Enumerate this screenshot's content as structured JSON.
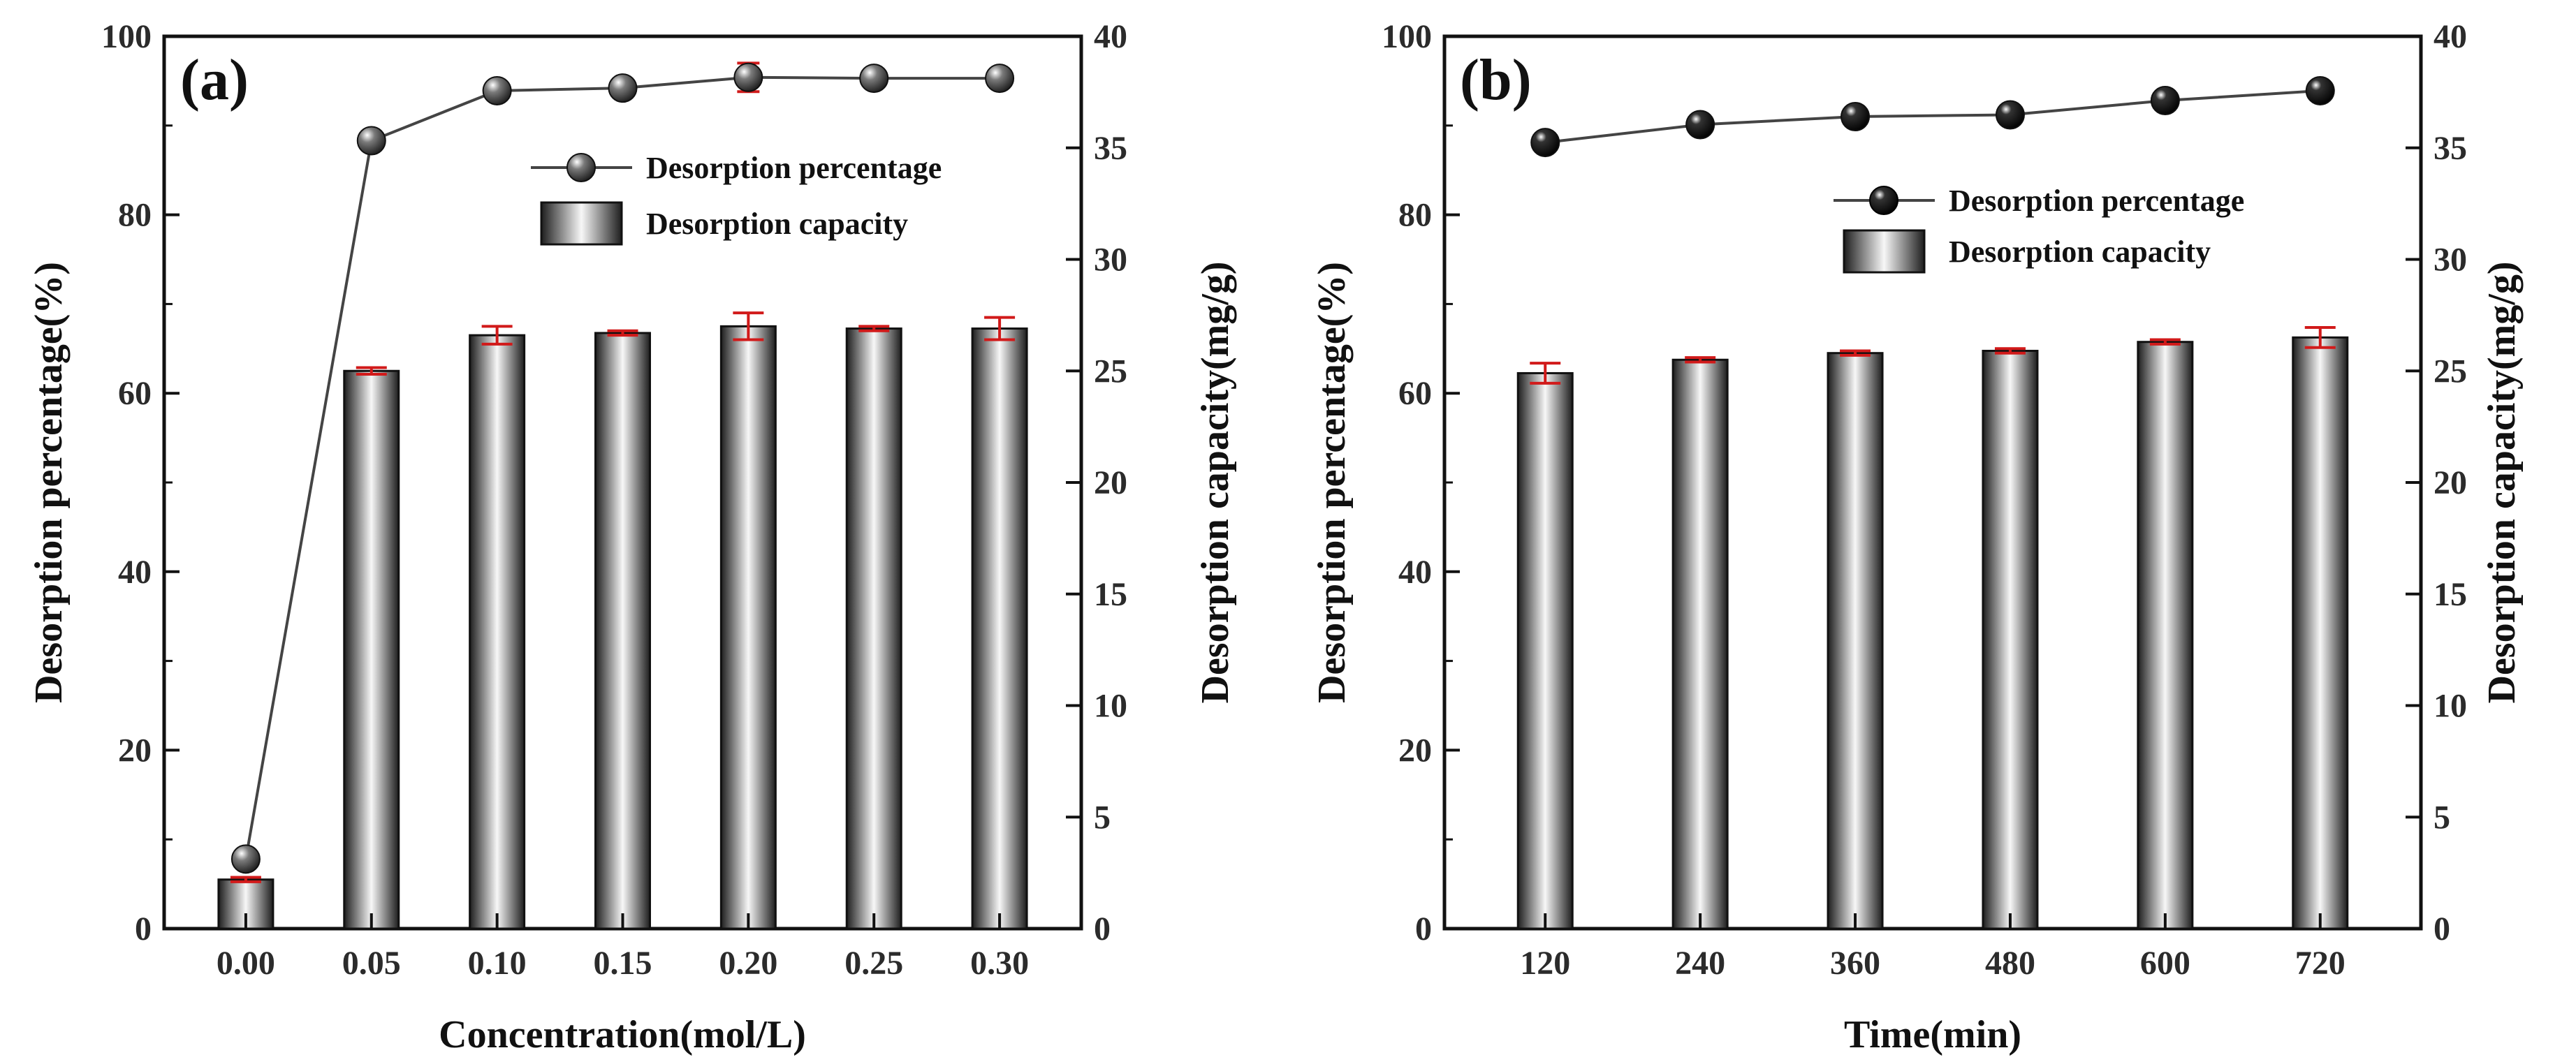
{
  "chart_data": [
    {
      "type": "bar",
      "panel_label": "(a)",
      "categories": [
        "0.00",
        "0.05",
        "0.10",
        "0.15",
        "0.20",
        "0.25",
        "0.30"
      ],
      "xlabel": "Concentration(mol/L)",
      "ylabel": "Desorption percentage(%)",
      "y2label": "Desorption capacity(mg/g)",
      "ylim": [
        0,
        100
      ],
      "y2lim": [
        0,
        40
      ],
      "yticks": [
        "0",
        "20",
        "40",
        "60",
        "80",
        "100"
      ],
      "y2ticks": [
        "0",
        "5",
        "10",
        "15",
        "20",
        "25",
        "30",
        "35",
        "40"
      ],
      "series": [
        {
          "name": "Desorption capacity",
          "kind": "bar",
          "axis": "right",
          "values": [
            2.2,
            25.0,
            26.6,
            26.7,
            27.0,
            26.9,
            26.9
          ],
          "errors": [
            0.1,
            0.15,
            0.4,
            0.1,
            0.6,
            0.1,
            0.5
          ]
        },
        {
          "name": "Desorption percentage",
          "kind": "line",
          "axis": "left",
          "values": [
            7.8,
            88.3,
            93.9,
            94.2,
            95.4,
            95.3,
            95.3
          ],
          "errors": [
            0.3,
            0.5,
            0.6,
            0.6,
            1.6,
            0.4,
            0.4
          ]
        }
      ],
      "legend": [
        "Desorption percentage",
        "Desorption capacity"
      ],
      "legend_position": "upper-right",
      "colors": {
        "marker": "#3a3a3a",
        "line": "#444444",
        "error": "#d11a1a",
        "bar_dark": "#1e1e1e",
        "bar_light": "#f7f7f7"
      }
    },
    {
      "type": "bar",
      "panel_label": "(b)",
      "categories": [
        "120",
        "240",
        "360",
        "480",
        "600",
        "720"
      ],
      "xlabel": "Time(min)",
      "ylabel": "Desorption percentage(%)",
      "y2label": "Desorption capacity(mg/g)",
      "ylim": [
        0,
        100
      ],
      "y2lim": [
        0,
        40
      ],
      "yticks": [
        "0",
        "20",
        "40",
        "60",
        "80",
        "100"
      ],
      "y2ticks": [
        "0",
        "5",
        "10",
        "15",
        "20",
        "25",
        "30",
        "35",
        "40"
      ],
      "series": [
        {
          "name": "Desorption capacity",
          "kind": "bar",
          "axis": "right",
          "values": [
            24.9,
            25.5,
            25.8,
            25.9,
            26.3,
            26.5
          ],
          "errors": [
            0.45,
            0.1,
            0.1,
            0.1,
            0.1,
            0.45
          ]
        },
        {
          "name": "Desorption percentage",
          "kind": "line",
          "axis": "left",
          "values": [
            88.1,
            90.1,
            91.0,
            91.2,
            92.8,
            93.9
          ],
          "errors": [
            0.5,
            0.5,
            0.5,
            0.5,
            0.5,
            0.5
          ]
        }
      ],
      "legend": [
        "Desorption percentage",
        "Desorption capacity"
      ],
      "legend_position": "upper-right",
      "colors": {
        "marker": "#111111",
        "line": "#444444",
        "error": "#d11a1a",
        "bar_dark": "#1e1e1e",
        "bar_light": "#f7f7f7"
      }
    }
  ]
}
